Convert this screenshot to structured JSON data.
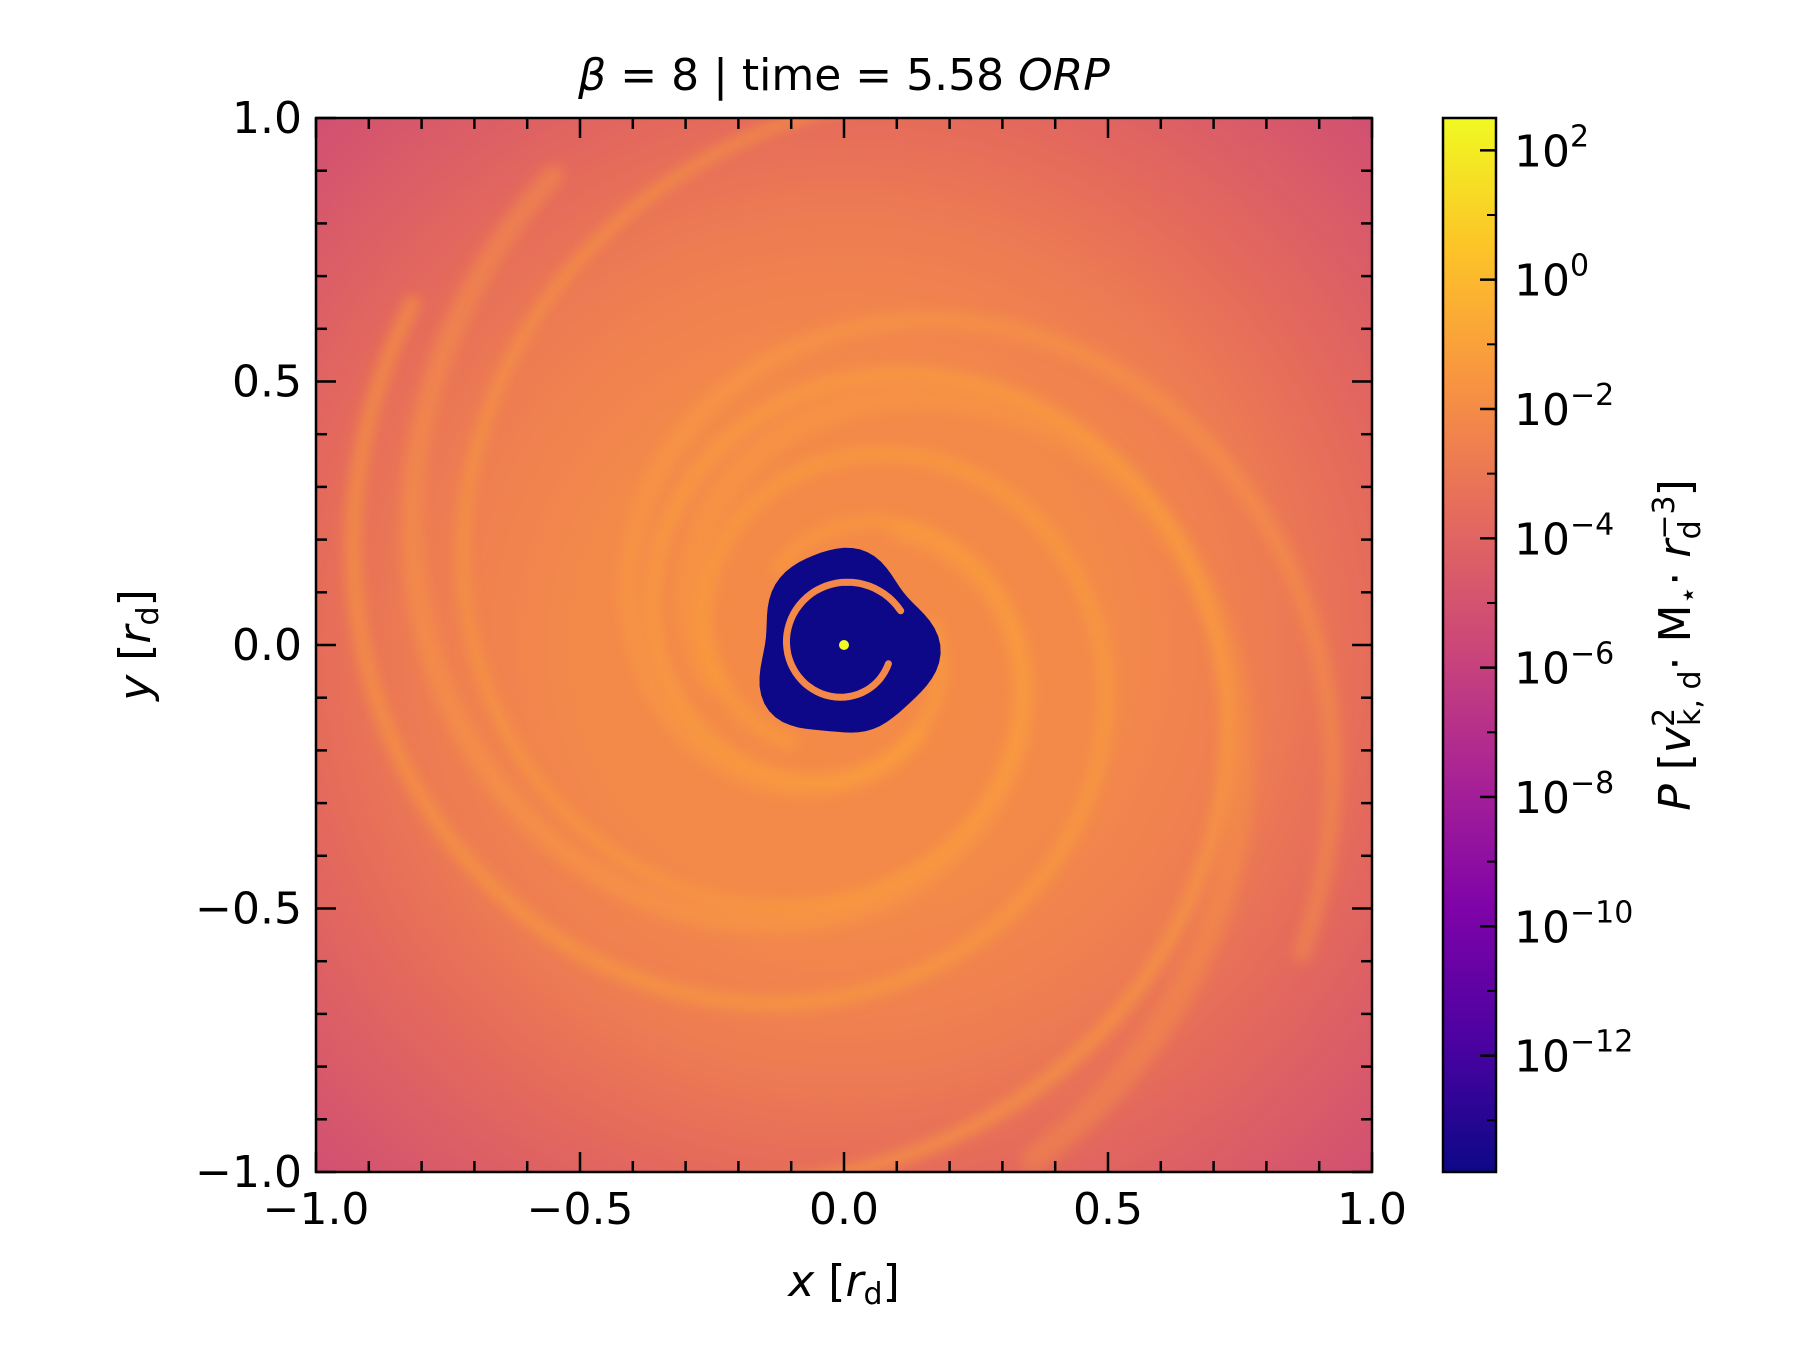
{
  "chart_data": {
    "type": "heatmap",
    "title": {
      "prefix_symbol": "β",
      "mid": " = 8 | time = 5.58 ",
      "suffix_italic": "ORP"
    },
    "x_axis": {
      "symbol": "x",
      "unit_open": " [",
      "unit_symbol": "r",
      "unit_sub": "d",
      "unit_close": "]",
      "range": [
        -1.0,
        1.0
      ],
      "ticks": [
        -1.0,
        -0.5,
        0.0,
        0.5,
        1.0
      ],
      "tick_labels": [
        "−1.0",
        "−0.5",
        "0.0",
        "0.5",
        "1.0"
      ]
    },
    "y_axis": {
      "symbol": "y",
      "unit_open": " [",
      "unit_symbol": "r",
      "unit_sub": "d",
      "unit_close": "]",
      "range": [
        -1.0,
        1.0
      ],
      "ticks": [
        -1.0,
        -0.5,
        0.0,
        0.5,
        1.0
      ],
      "tick_labels": [
        "−1.0",
        "−0.5",
        "0.0",
        "0.5",
        "1.0"
      ]
    },
    "colorbar": {
      "colormap": "plasma",
      "scale": "log",
      "range_log10": [
        -13.8,
        2.5
      ],
      "tick_exponents": [
        2,
        0,
        -2,
        -4,
        -6,
        -8,
        -10,
        -12
      ],
      "tick_base": "10",
      "tick_exponent_labels": [
        "2",
        "0",
        "−2",
        "−4",
        "−6",
        "−8",
        "−10",
        "−12"
      ],
      "label": {
        "symbol": "P",
        "open": " [",
        "v": "v",
        "v_sup": "2",
        "v_sub": "k, d",
        "mid": "· M",
        "star_sub": "⋆",
        "dot": "· ",
        "r": "r",
        "r_sup": "−3",
        "r_sub": "d",
        "close": "]"
      }
    },
    "field": {
      "center_x": 0.0,
      "center_y": 0.0,
      "background_log10": -4.3,
      "disk_log10": -2.2,
      "cavity_log10": -13.5,
      "cavity_radius": 0.19,
      "colors": {
        "cavity": "#0d0887",
        "corner": "#d5536f",
        "disk": "#f48849",
        "spiral": "#fba238",
        "center_spot": "#f0f921"
      }
    }
  }
}
